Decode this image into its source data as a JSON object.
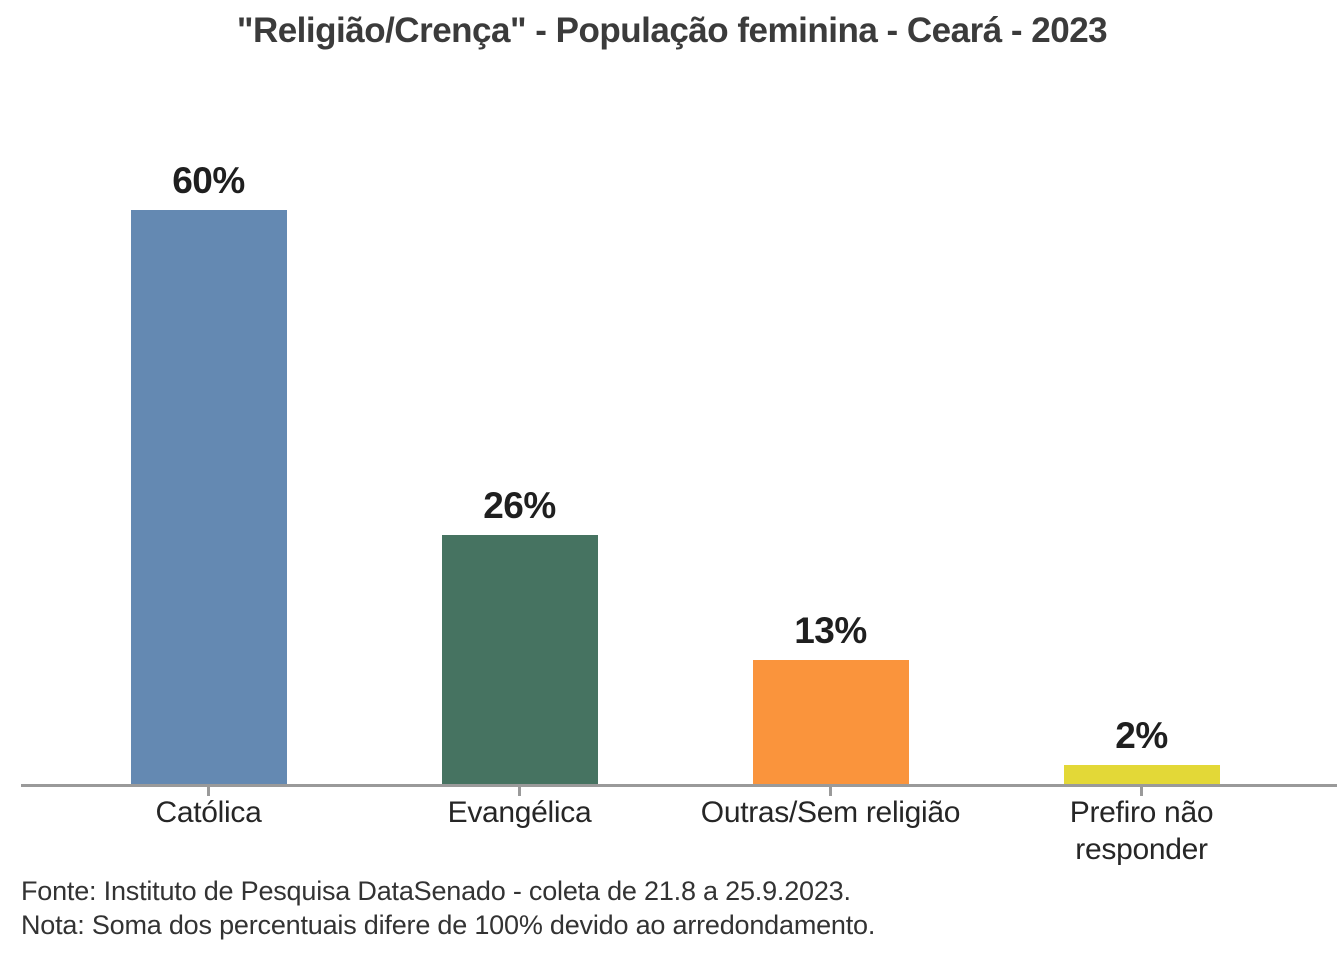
{
  "title": "\"Religião/Crença\" - População feminina - Ceará - 2023",
  "footer": {
    "fonte": "Fonte: Instituto de Pesquisa DataSenado - coleta de 21.8 a 25.9.2023.",
    "nota": "Nota: Soma dos percentuais difere de 100% devido ao arredondamento."
  },
  "chart_data": {
    "type": "bar",
    "title": "\"Religião/Crença\" - População feminina - Ceará - 2023",
    "categories": [
      "Católica",
      "Evangélica",
      "Outras/Sem religião",
      "Prefiro não responder"
    ],
    "values": [
      60,
      26,
      13,
      2
    ],
    "value_labels": [
      "60%",
      "26%",
      "13%",
      "2%"
    ],
    "unit": "percent",
    "series_colors": [
      "#6489B2",
      "#467361",
      "#FA943C",
      "#E3D837"
    ],
    "ylim": [
      0,
      63
    ],
    "grid": false,
    "legend": false,
    "x_axis": {
      "line_color": "#9A9A9A",
      "tick_color": "#9A9A9A",
      "label_color": "#262626"
    },
    "value_label_color": "#1F1F1F",
    "title_color": "#3B3B3B",
    "source_note": "Fonte: Instituto de Pesquisa DataSenado - coleta de 21.8 a 25.9.2023.",
    "note": "Nota: Soma dos percentuais difere de 100% devido ao arredondamento."
  }
}
